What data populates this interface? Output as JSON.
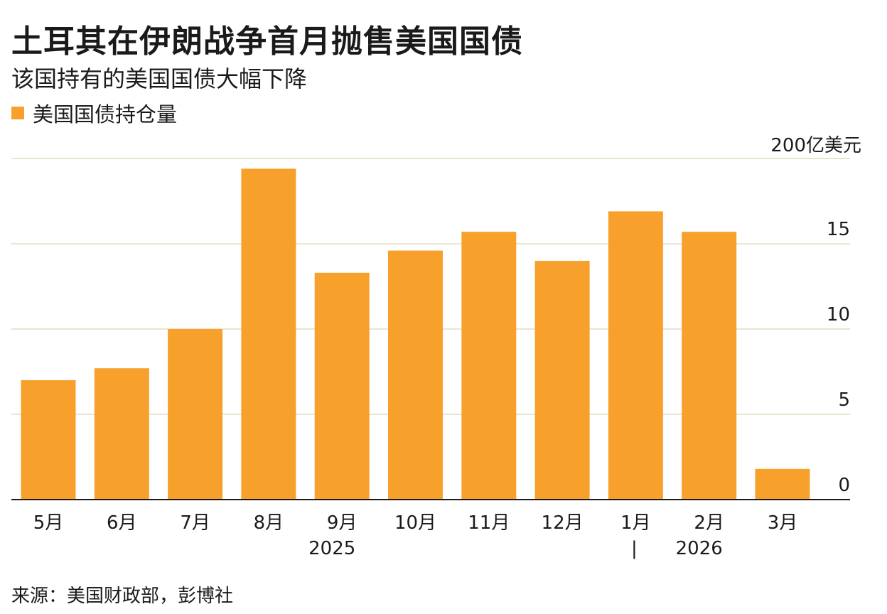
{
  "chart_data": {
    "type": "bar",
    "title": "土耳其在伊朗战争首月抛售美国国债",
    "subtitle": "该国持有的美国国债大幅下降",
    "legend": [
      {
        "label": "美国国债持仓量",
        "color": "#f7a12c"
      }
    ],
    "unit": "200亿美元",
    "categories": [
      "5月",
      "6月",
      "7月",
      "8月",
      "9月",
      "10月",
      "11月",
      "12月",
      "1月",
      "2月",
      "3月"
    ],
    "values": [
      7.0,
      7.7,
      10.0,
      19.4,
      13.3,
      14.6,
      15.7,
      14.0,
      16.9,
      15.7,
      1.8
    ],
    "year_labels": [
      {
        "label": "2025",
        "after_category": "9月"
      },
      {
        "label": "2026",
        "after_category": "2月"
      }
    ],
    "year_divider_text": "|",
    "y_ticks": [
      "0",
      "5",
      "10",
      "15"
    ],
    "y_tick_values": [
      0,
      5,
      10,
      15
    ],
    "ylim": [
      0,
      20
    ],
    "grid": true,
    "y_axis_side": "right",
    "bar_color": "#f7a12c",
    "grid_color": "#ece4d2",
    "axis_color": "#1a1a1a"
  },
  "source": "来源：美国财政部，彭博社"
}
